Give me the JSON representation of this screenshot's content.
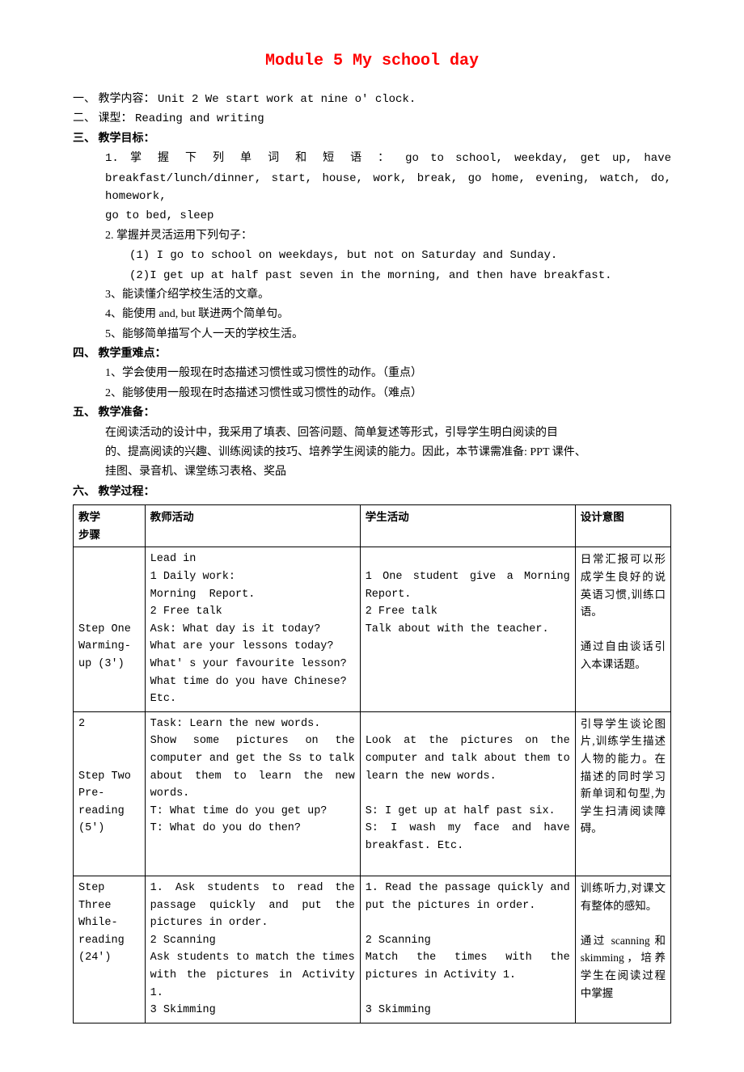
{
  "title": "Module 5  My school day",
  "sections": {
    "s1": {
      "label": "一、 教学内容：",
      "text": "Unit 2 We start work at nine o' clock."
    },
    "s2": {
      "label": "二、 课型：",
      "text": "Reading and writing"
    },
    "s3": {
      "label": "三、 教学目标："
    },
    "goal1a": "1.  掌 握 下 列 单 词 和 短 语 ：   go  to  school,  weekday,  get  up,  have",
    "goal1b": "breakfast/lunch/dinner, start, house, work, break, go home, evening, watch, do, homework,",
    "goal1c": "go to bed, sleep",
    "goal2": "2.  掌握并灵活运用下列句子：",
    "goal2_1": "(1) I go to school on weekdays, but not on Saturday and Sunday.",
    "goal2_2": "(2)I get up at half past seven in the morning, and then have breakfast.",
    "goal3": "3、能读懂介绍学校生活的文章。",
    "goal4": "4、能使用 and, but 联进两个简单句。",
    "goal5": "5、能够简单描写个人一天的学校生活。",
    "s4": {
      "label": "四、 教学重难点："
    },
    "key1": "1、学会使用一般现在时态描述习惯性或习惯性的动作。（重点）",
    "key2": "2、能够使用一般现在时态描述习惯性或习惯性的动作。（难点）",
    "s5": {
      "label": "五、 教学准备："
    },
    "prep1": "在阅读活动的设计中，我采用了填表、回答问题、简单复述等形式，引导学生明白阅读的目",
    "prep2": "的、提高阅读的兴趣、训练阅读的技巧、培养学生阅读的能力。因此，本节课需准备: PPT 课件、",
    "prep3": "挂图、录音机、课堂练习表格、奖品",
    "s6": {
      "label": "六、 教学过程："
    }
  },
  "table": {
    "headers": {
      "c1": "教学\n步骤",
      "c2": "教师活动",
      "c3": "学生活动",
      "c4": "设计意图"
    },
    "rows": [
      {
        "c1": "\n\n\n\nStep One\nWarming-\nup (3')",
        "c2": " Lead in\n1 Daily work:\nMorning  Report.\n2 Free talk\nAsk: What day is it today?\nWhat are your lessons today?\nWhat' s your favourite lesson?\nWhat time do you have Chinese?\nEtc.",
        "c3": "\n1 One student give a Morning Report.\n2 Free talk\nTalk about with the teacher.",
        "c4": "日常汇报可以形成学生良好的说英语习惯,训练口语。\n\n通过自由谈话引入本课话题。"
      },
      {
        "c1": "2\n\n\nStep Two\nPre-\nreading\n(5')",
        "c2": "Task: Learn the new words.\nShow some pictures on the computer and get the Ss to talk about them to learn the new words.\nT: What time do you get up?\nT: What do you do then?",
        "c3": "\nLook at the pictures on the computer and talk about them to learn the new words.\n\nS: I get up at half past six.\nS: I wash my face and have breakfast. Etc.\n",
        "c4": "引导学生谈论图片,训练学生描述人物的能力。在描述的同时学习新单词和句型,为学生扫清阅读障碍。"
      },
      {
        "c1": "Step\nThree\nWhile-\nreading\n(24')",
        "c2": "1. Ask students to read the passage quickly and put the pictures in order.\n2 Scanning\nAsk students to match the times with the pictures in Activity 1.\n3 Skimming",
        "c3": "1. Read the passage quickly and put the pictures in order.\n\n2 Scanning\nMatch the times with the pictures in Activity 1.\n\n3 Skimming",
        "c4": "训练听力,对课文有整体的感知。\n\n通过 scanning 和 skimming，培养学生在阅读过程中掌握"
      }
    ]
  },
  "colors": {
    "title": "#ff0000",
    "text": "#000000",
    "bg": "#ffffff",
    "border": "#000000"
  }
}
